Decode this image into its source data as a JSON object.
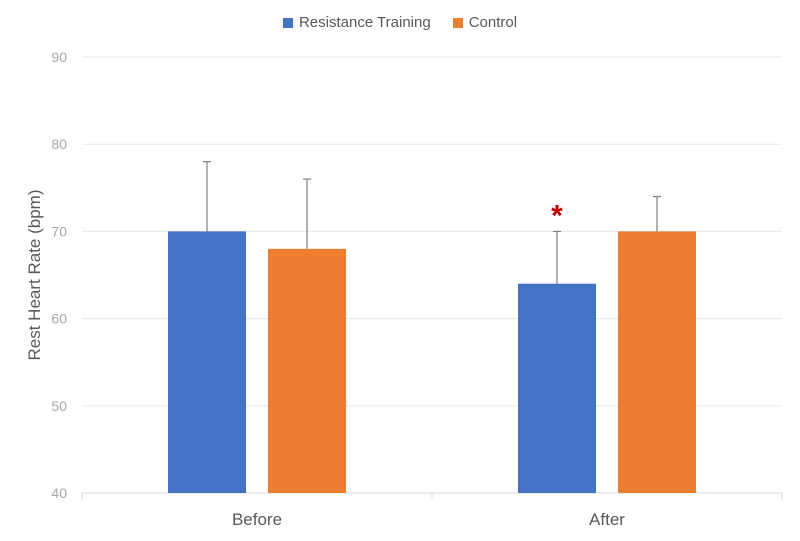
{
  "chart_data": {
    "type": "bar",
    "categories": [
      "Before",
      "After"
    ],
    "series": [
      {
        "name": "Resistance Training",
        "color": "#4472C4",
        "values": [
          70,
          64
        ],
        "error_upper": [
          78,
          70
        ]
      },
      {
        "name": "Control",
        "color": "#ED7D31",
        "values": [
          68,
          70
        ],
        "error_upper": [
          76,
          74
        ]
      }
    ],
    "ylabel": "Rest Heart Rate (bpm)",
    "xlabel": "",
    "ylim": [
      40,
      90
    ],
    "yticks": [
      40,
      50,
      60,
      70,
      80,
      90
    ],
    "grid": true,
    "legend_position": "top-center",
    "annotations": [
      {
        "text": "*",
        "category": "After",
        "series": "Resistance Training",
        "color": "#C00000"
      }
    ]
  }
}
